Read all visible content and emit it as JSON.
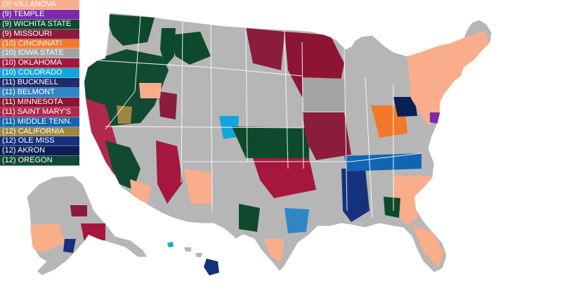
{
  "legend": [
    {
      "label": "(9) VILLANOVA",
      "color": "#f9ad8a"
    },
    {
      "label": "(9) TEMPLE",
      "color": "#7a2aa8"
    },
    {
      "label": "(9) WICHITA STATE",
      "color": "#0d4a2c"
    },
    {
      "label": "(9) MISSOURI",
      "color": "#8b1c3b"
    },
    {
      "label": "(10) CINCINNATI",
      "color": "#f2782b"
    },
    {
      "label": "(10) IOWA STATE",
      "color": "#a3a3a3"
    },
    {
      "label": "(10) OKLAHOMA",
      "color": "#a5173c"
    },
    {
      "label": "(10) COLORADO",
      "color": "#12a6dd"
    },
    {
      "label": "(11) BUCKNELL",
      "color": "#1f2d6d"
    },
    {
      "label": "(11) BELMONT",
      "color": "#2f86c4"
    },
    {
      "label": "(11) MINNESOTA",
      "color": "#8d1533"
    },
    {
      "label": "(11) SAINT MARY'S",
      "color": "#b0284b"
    },
    {
      "label": "(11) MIDDLE TENN.",
      "color": "#1066b3"
    },
    {
      "label": "(12) CALIFORNIA",
      "color": "#9c8642"
    },
    {
      "label": "(12) OLE MISS",
      "color": "#15317e"
    },
    {
      "label": "(12) AKRON",
      "color": "#0b1f57"
    },
    {
      "label": "(12) OREGON",
      "color": "#114a30"
    }
  ],
  "map": {
    "base_color": "#b6b6b6",
    "border_color": "#ffffff"
  }
}
